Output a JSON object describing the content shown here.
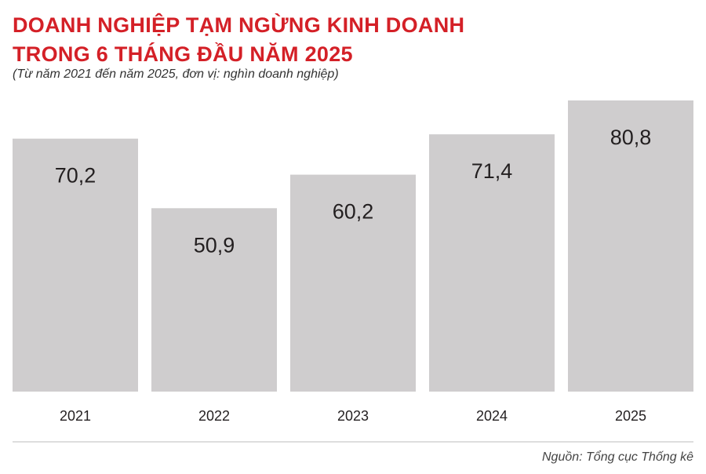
{
  "title_lines": [
    "DOANH NGHIỆP TẠM NGỪNG KINH DOANH",
    "TRONG 6 THÁNG ĐẦU NĂM 2025"
  ],
  "subtitle": "(Từ năm 2021 đến năm 2025, đơn vị: nghìn doanh nghiệp)",
  "source": "Nguồn: Tổng cục Thống kê",
  "colors": {
    "title": "#d42027",
    "bar": "#cfcdce",
    "text": "#231f20"
  },
  "chart_data": {
    "type": "bar",
    "title": "DOANH NGHIỆP TẠM NGỪNG KINH DOANH TRONG 6 THÁNG ĐẦU NĂM 2025",
    "subtitle": "(Từ năm 2021 đến năm 2025, đơn vị: nghìn doanh nghiệp)",
    "categories": [
      "2021",
      "2022",
      "2023",
      "2024",
      "2025"
    ],
    "values": [
      70.2,
      50.9,
      60.2,
      71.4,
      80.8
    ],
    "value_labels": [
      "70,2",
      "50,9",
      "60,2",
      "71,4",
      "80,8"
    ],
    "xlabel": "",
    "ylabel": "",
    "ylim": [
      0,
      80.8
    ],
    "grid": false,
    "legend": "none"
  }
}
